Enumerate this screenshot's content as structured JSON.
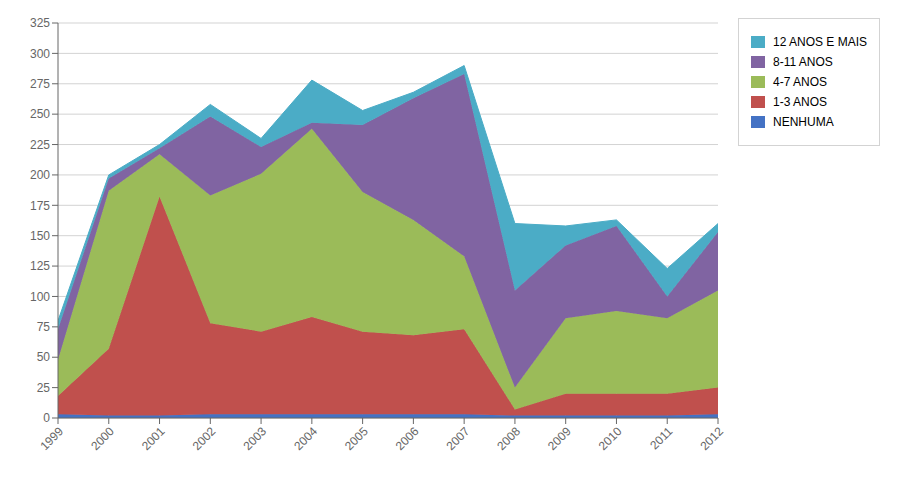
{
  "chart_data": {
    "type": "area",
    "stacked": true,
    "x": [
      1999,
      2000,
      2001,
      2002,
      2003,
      2004,
      2005,
      2006,
      2007,
      2008,
      2009,
      2010,
      2011,
      2012
    ],
    "series": [
      {
        "name": "NENHUMA",
        "color": "#4472C4",
        "values": [
          3,
          2,
          2,
          3,
          3,
          3,
          3,
          3,
          3,
          2,
          2,
          2,
          2,
          3
        ]
      },
      {
        "name": "1-3 ANOS",
        "color": "#C0504D",
        "values": [
          15,
          55,
          180,
          75,
          68,
          80,
          68,
          65,
          70,
          5,
          18,
          18,
          18,
          22
        ]
      },
      {
        "name": "4-7 ANOS",
        "color": "#9BBB59",
        "values": [
          30,
          130,
          35,
          105,
          130,
          155,
          115,
          95,
          60,
          18,
          62,
          68,
          62,
          80
        ]
      },
      {
        "name": "8-11 ANOS",
        "color": "#8064A2",
        "values": [
          25,
          10,
          5,
          65,
          22,
          5,
          55,
          100,
          150,
          80,
          60,
          70,
          18,
          48
        ]
      },
      {
        "name": "12 ANOS E MAIS",
        "color": "#4BACC6",
        "values": [
          7,
          3,
          3,
          10,
          7,
          35,
          12,
          5,
          7,
          55,
          16,
          5,
          23,
          7
        ]
      }
    ],
    "xlim": [
      1999,
      2012
    ],
    "xticks": [
      1999,
      2000,
      2001,
      2002,
      2003,
      2004,
      2005,
      2006,
      2007,
      2008,
      2009,
      2010,
      2011,
      2012
    ],
    "ylim": [
      0,
      325
    ],
    "yticks": [
      0,
      25,
      50,
      75,
      100,
      125,
      150,
      175,
      200,
      225,
      250,
      275,
      300,
      325
    ],
    "grid": "y",
    "legend": "right"
  }
}
